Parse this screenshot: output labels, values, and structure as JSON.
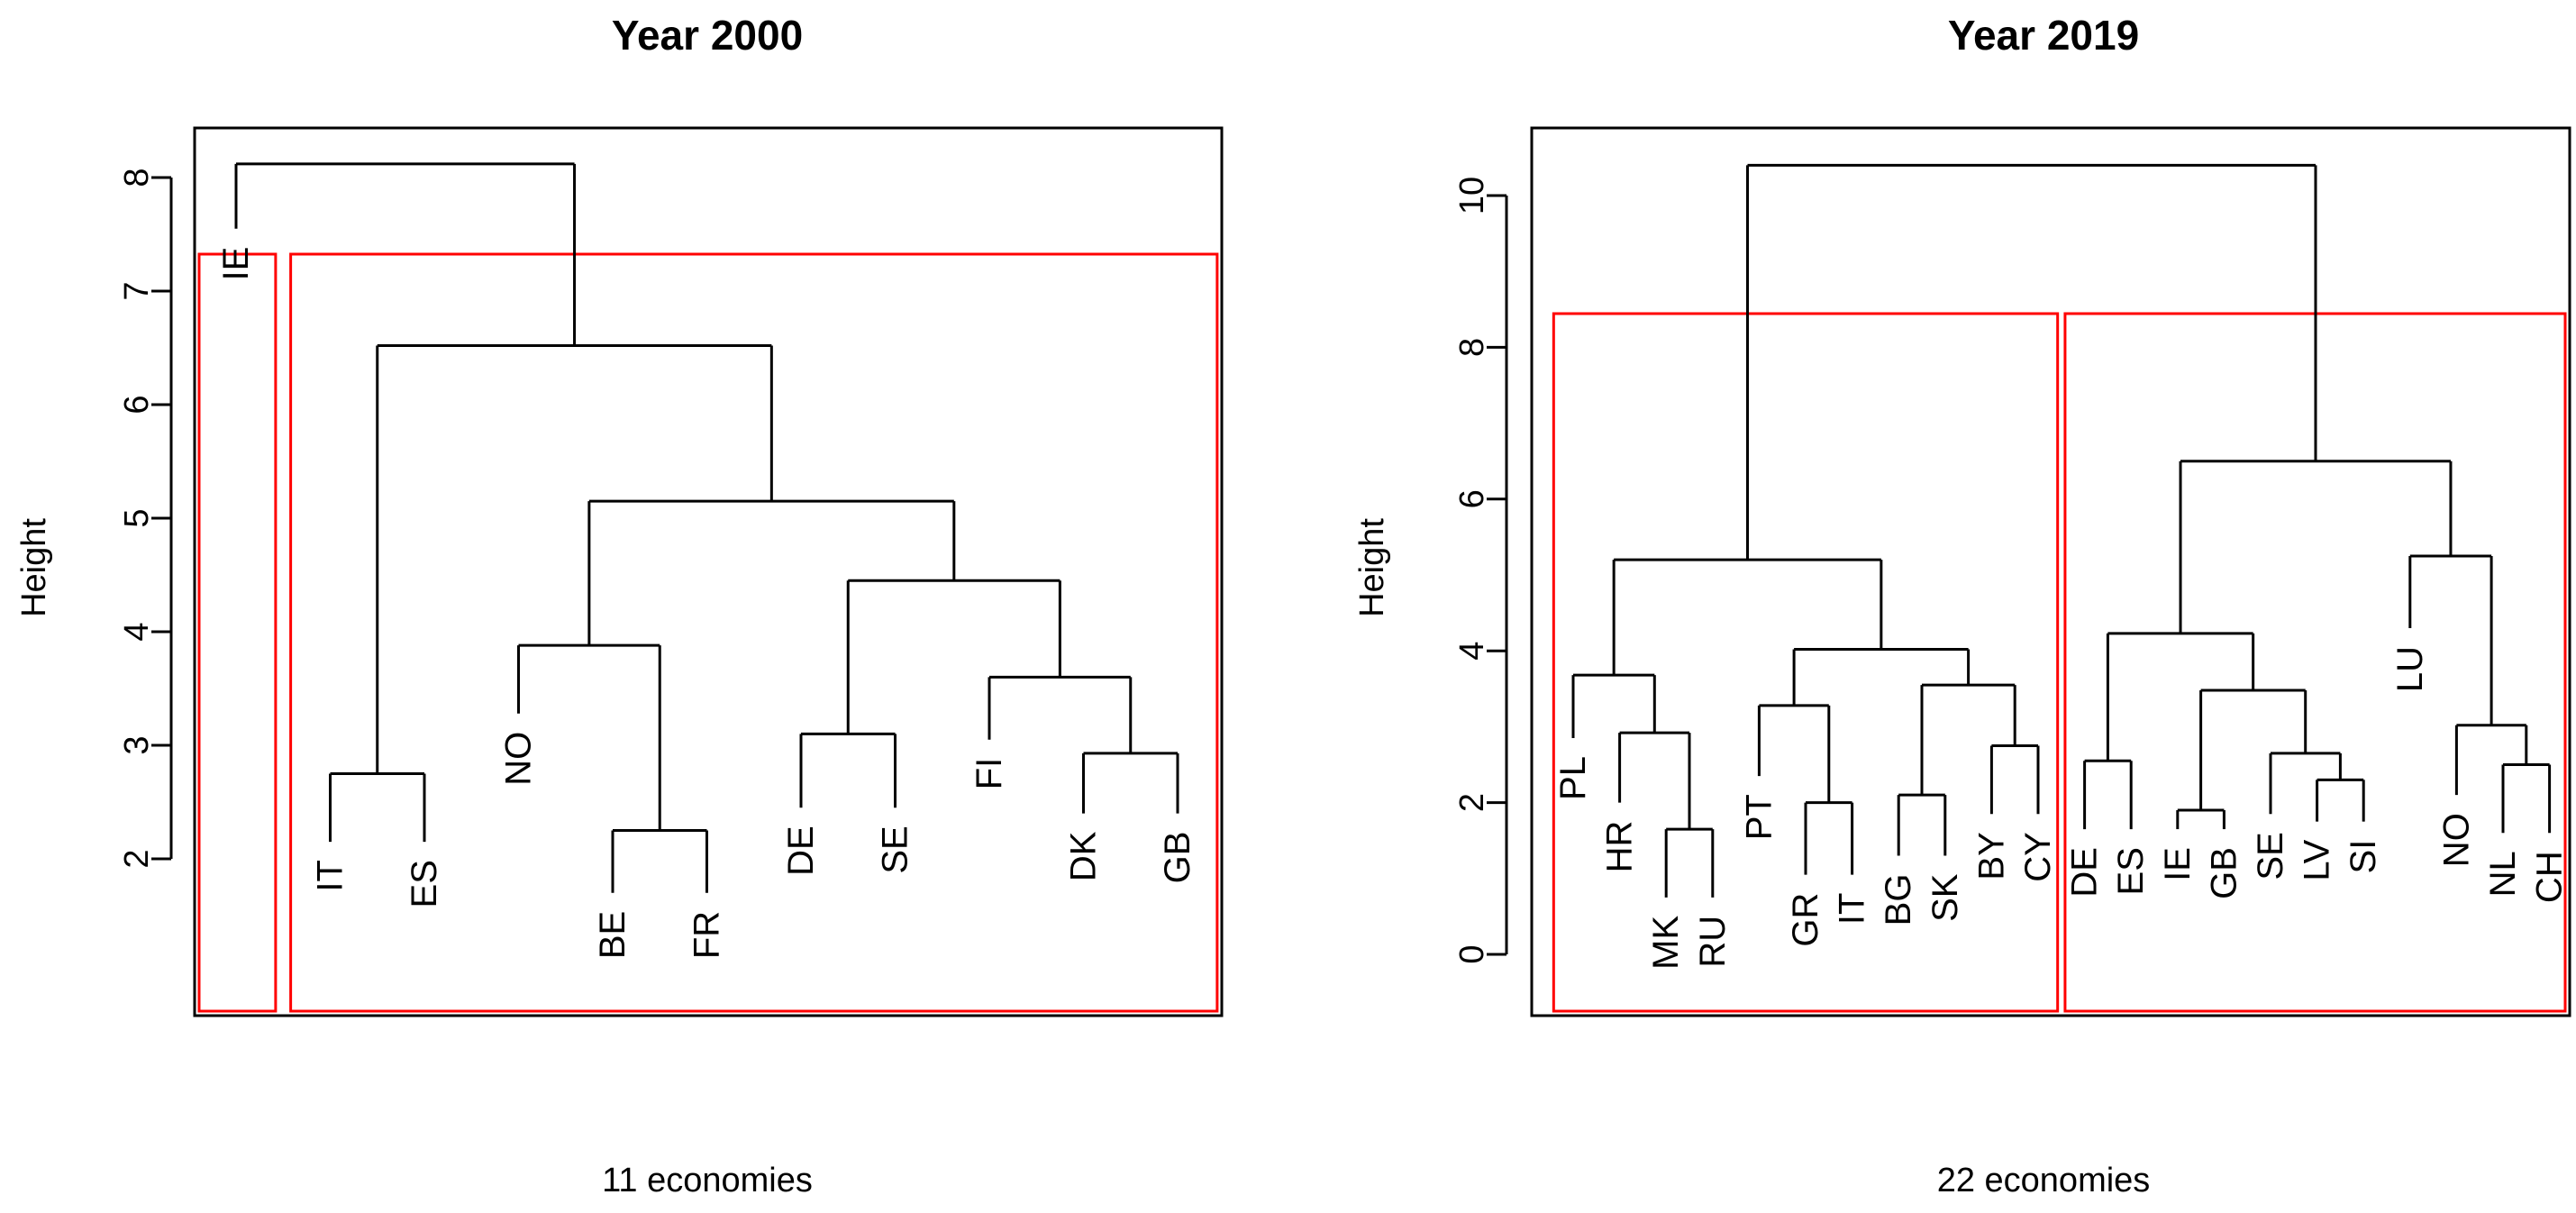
{
  "chart_data": [
    {
      "type": "dendrogram",
      "title": "Year 2000",
      "xlabel": "11 economies",
      "ylabel": "Height",
      "yticks": [
        2,
        3,
        4,
        5,
        6,
        7,
        8
      ],
      "leaf_order": [
        "IE",
        "IT",
        "ES",
        "NO",
        "BE",
        "FR",
        "DE",
        "SE",
        "FI",
        "DK",
        "GB"
      ],
      "merges": [
        {
          "a": "BE",
          "b": "FR",
          "height": 2.25
        },
        {
          "a": "IT",
          "b": "ES",
          "height": 2.75
        },
        {
          "a": "DK",
          "b": "GB",
          "height": 2.93
        },
        {
          "a": "DE",
          "b": "SE",
          "height": 3.1
        },
        {
          "a": "FI",
          "b": "DK-GB",
          "height": 3.6
        },
        {
          "a": "NO",
          "b": "BE-FR",
          "height": 3.88
        },
        {
          "a": "DE-SE",
          "b": "FI-DK-GB",
          "height": 4.45
        },
        {
          "a": "NO-BE-FR",
          "b": "DE-SE-FI-DK-GB",
          "height": 5.15
        },
        {
          "a": "IT-ES",
          "b": "rest",
          "height": 6.52
        },
        {
          "a": "IE",
          "b": "all",
          "height": 8.12
        }
      ],
      "clusters": [
        [
          "IE"
        ],
        [
          "IT",
          "ES",
          "NO",
          "BE",
          "FR",
          "DE",
          "SE",
          "FI",
          "DK",
          "GB"
        ]
      ],
      "cluster_box_color": "#ff0000"
    },
    {
      "type": "dendrogram",
      "title": "Year 2019",
      "xlabel": "22 economies",
      "ylabel": "Height",
      "yticks": [
        0,
        2,
        4,
        6,
        8,
        10
      ],
      "leaf_order": [
        "PL",
        "HR",
        "MK",
        "RU",
        "PT",
        "GR",
        "IT",
        "BG",
        "SK",
        "BY",
        "CY",
        "DE",
        "ES",
        "IE",
        "GB",
        "SE",
        "LV",
        "SI",
        "LU",
        "NO",
        "NL",
        "CH"
      ],
      "merges": [
        {
          "a": "MK",
          "b": "RU",
          "height": 1.65
        },
        {
          "a": "SE",
          "b": "LV-SI",
          "height": 2.65
        },
        {
          "a": "LV",
          "b": "SI",
          "height": 2.3
        },
        {
          "a": "NL",
          "b": "CH",
          "height": 2.5
        },
        {
          "a": "IE",
          "b": "GB",
          "height": 1.9
        },
        {
          "a": "GR",
          "b": "IT",
          "height": 2.0
        },
        {
          "a": "BG",
          "b": "SK",
          "height": 2.1
        },
        {
          "a": "DE",
          "b": "ES",
          "height": 2.55
        },
        {
          "a": "BY",
          "b": "CY",
          "height": 2.75
        },
        {
          "a": "HR",
          "b": "MK-RU",
          "height": 2.92
        },
        {
          "a": "NO",
          "b": "NL-CH",
          "height": 3.02
        },
        {
          "a": "PT",
          "b": "GR-IT",
          "height": 3.28
        },
        {
          "a": "IE-GB",
          "b": "SE-LV-SI",
          "height": 3.48
        },
        {
          "a": "BG-SK",
          "b": "BY-CY",
          "height": 3.55
        },
        {
          "a": "PL",
          "b": "HR-MK-RU",
          "height": 3.68
        },
        {
          "a": "PT-GR-IT",
          "b": "BG-SK-BY-CY",
          "height": 4.02
        },
        {
          "a": "DE-ES",
          "b": "IE-GB-SE-LV-SI",
          "height": 4.23
        },
        {
          "a": "PL-group",
          "b": "PT-group",
          "height": 5.2
        },
        {
          "a": "LU",
          "b": "NO-NL-CH",
          "height": 5.25
        },
        {
          "a": "west-a",
          "b": "west-b",
          "height": 6.5
        },
        {
          "a": "east",
          "b": "west",
          "height": 10.4
        }
      ],
      "clusters": [
        [
          "PL",
          "HR",
          "MK",
          "RU",
          "PT",
          "GR",
          "IT",
          "BG",
          "SK",
          "BY",
          "CY"
        ],
        [
          "DE",
          "ES",
          "IE",
          "GB",
          "SE",
          "LV",
          "SI",
          "LU",
          "NO",
          "NL",
          "CH"
        ]
      ],
      "cluster_box_color": "#ff0000"
    }
  ]
}
